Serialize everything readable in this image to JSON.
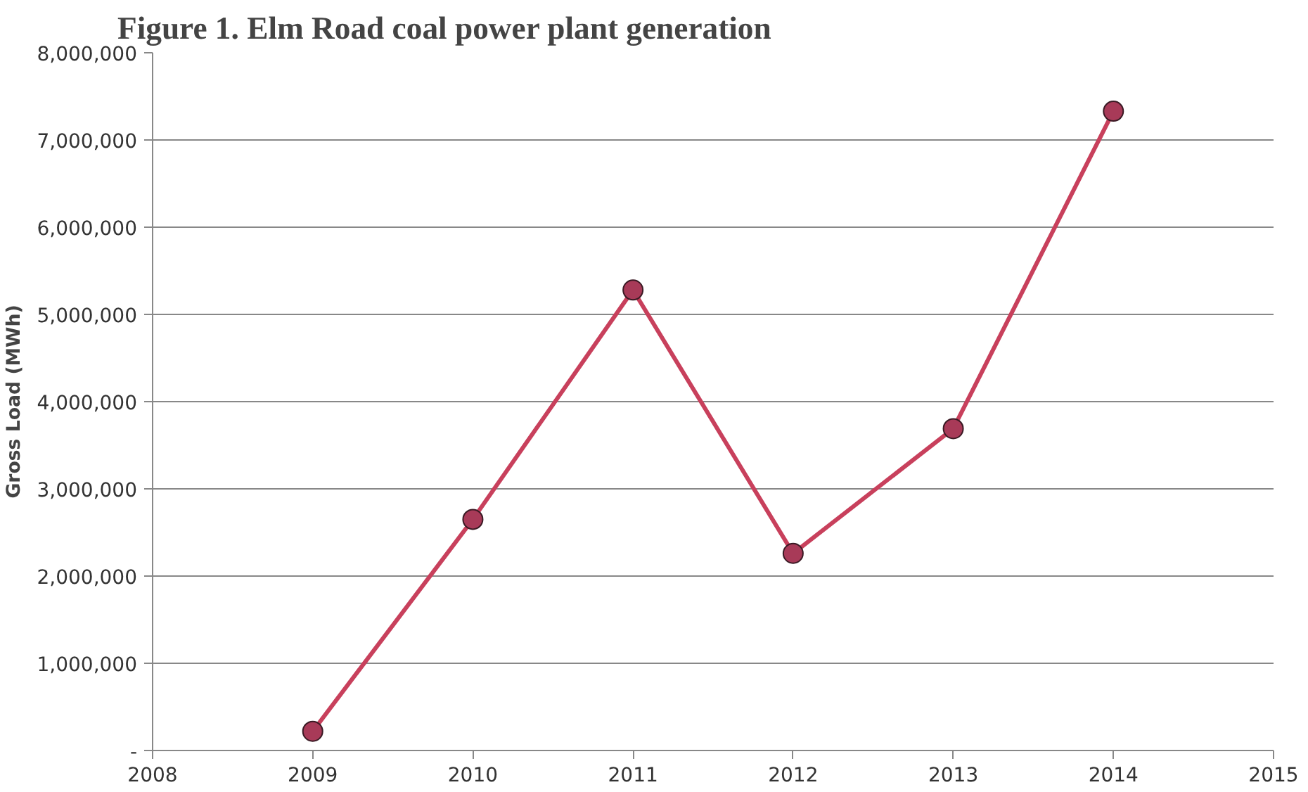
{
  "chart_data": {
    "type": "line",
    "title": "Figure 1. Elm Road coal power plant generation",
    "ylabel": "Gross Load (MWh)",
    "x": [
      2009,
      2010,
      2011,
      2012,
      2013,
      2014
    ],
    "series": [
      {
        "color": "#c8405c",
        "values": [
          220000,
          2650000,
          5280000,
          2260000,
          3690000,
          7330000
        ]
      }
    ],
    "xlim": [
      2008,
      2015
    ],
    "xticks": [
      2008,
      2009,
      2010,
      2011,
      2012,
      2013,
      2014,
      2015
    ],
    "ylim": [
      0,
      8000000
    ],
    "yticks": [
      {
        "value": 0,
        "label": "-"
      },
      {
        "value": 1000000,
        "label": "1,000,000"
      },
      {
        "value": 2000000,
        "label": "2,000,000"
      },
      {
        "value": 3000000,
        "label": "3,000,000"
      },
      {
        "value": 4000000,
        "label": "4,000,000"
      },
      {
        "value": 5000000,
        "label": "5,000,000"
      },
      {
        "value": 6000000,
        "label": "6,000,000"
      },
      {
        "value": 7000000,
        "label": "7,000,000"
      },
      {
        "value": 8000000,
        "label": "8,000,000"
      }
    ],
    "grid": "y",
    "marker": "circle"
  }
}
